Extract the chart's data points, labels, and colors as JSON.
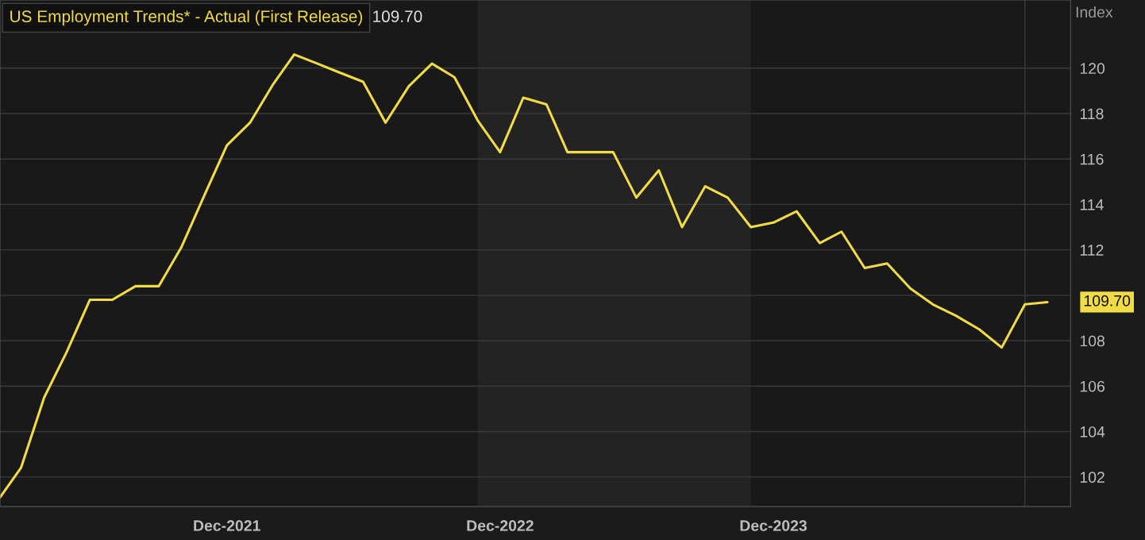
{
  "chart_data": {
    "type": "line",
    "title": "US Employment Trends* - Actual (First Release)",
    "ylabel": "Index",
    "annotations": [
      "109.70",
      {
        "text": "109.70",
        "x": "2024-12",
        "y": 109.7
      }
    ],
    "x": [
      "2021-02",
      "2021-03",
      "2021-04",
      "2021-05",
      "2021-06",
      "2021-07",
      "2021-08",
      "2021-09",
      "2021-10",
      "2021-11",
      "2021-12",
      "2022-01",
      "2022-02",
      "2022-03",
      "2022-04",
      "2022-05",
      "2022-06",
      "2022-07",
      "2022-08",
      "2022-09",
      "2022-10",
      "2022-11",
      "2022-12",
      "2023-01",
      "2023-02",
      "2023-03",
      "2023-04",
      "2023-05",
      "2023-06",
      "2023-07",
      "2023-08",
      "2023-09",
      "2023-10",
      "2023-11",
      "2023-12",
      "2024-01",
      "2024-02",
      "2024-03",
      "2024-04",
      "2024-05",
      "2024-06",
      "2024-07",
      "2024-08",
      "2024-09",
      "2024-10",
      "2024-11",
      "2024-12"
    ],
    "series": [
      {
        "color": "#f2dc45",
        "values": [
          101.1,
          102.4,
          105.5,
          107.5,
          109.8,
          109.8,
          110.4,
          110.4,
          112.1,
          114.4,
          116.6,
          117.6,
          119.3,
          120.6,
          120.2,
          119.8,
          119.4,
          117.6,
          119.2,
          120.2,
          119.6,
          117.7,
          116.3,
          118.7,
          118.4,
          116.3,
          116.3,
          116.3,
          114.3,
          115.5,
          113.0,
          114.8,
          114.3,
          113.0,
          113.2,
          113.7,
          112.3,
          112.8,
          111.2,
          111.4,
          110.3,
          109.6,
          109.1,
          108.5,
          107.7,
          109.6,
          109.7
        ]
      }
    ],
    "xlim": [
      "2021-02",
      "2025-01"
    ],
    "ylim": [
      100.7,
      123.0
    ],
    "xticks": [
      {
        "value": "2021-12",
        "label": "Dec-2021"
      },
      {
        "value": "2022-12",
        "label": "Dec-2022"
      },
      {
        "value": "2023-12",
        "label": "Dec-2023"
      }
    ],
    "yticks": [
      102,
      104,
      106,
      108,
      {
        "value": 110,
        "label": null
      },
      112,
      114,
      116,
      118,
      120
    ],
    "bands": [
      {
        "axis": "x",
        "from": "2022-11",
        "to": "2023-11",
        "color": "#232323"
      }
    ],
    "ref_lines": [
      {
        "axis": "x",
        "value": "2024-11",
        "color": "#3a3a3a"
      }
    ],
    "grid": "y",
    "legend": false
  }
}
